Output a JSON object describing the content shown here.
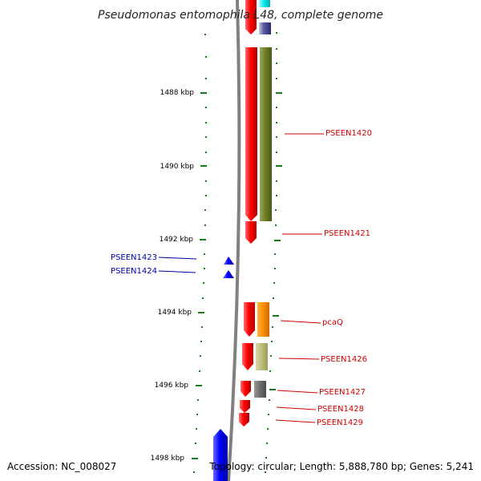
{
  "map": {
    "title": "Pseudomonas entomophila L48, complete genome",
    "accession": "Accession: NC_008027",
    "summary": "Topology: circular; Length: 5,888,780 bp; Genes: 5,241"
  },
  "ruler": {
    "ticks": [
      "1488 kbp",
      "1490 kbp",
      "1492 kbp",
      "1494 kbp",
      "1496 kbp",
      "1498 kbp"
    ]
  },
  "genes": {
    "forward_labels": [
      "PSEEN1420",
      "PSEEN1421",
      "pcaQ",
      "PSEEN1426",
      "PSEEN1427",
      "PSEEN1428",
      "PSEEN1429"
    ],
    "reverse_labels": [
      "PSEEN1423",
      "PSEEN1424"
    ]
  },
  "colors": {
    "forward_label": "#cc0000",
    "reverse_label": "#0000aa",
    "cds": "#ff0000",
    "reverse_cds": "#0000ff",
    "backbone": "#808080",
    "tick": "#1a7a1a"
  }
}
